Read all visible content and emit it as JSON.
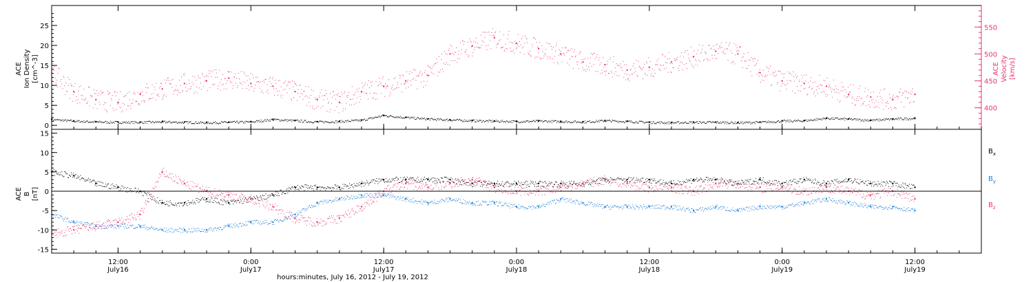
{
  "chart_data": [
    {
      "type": "scatter",
      "x_start": "July 16, 2012 06:00",
      "x_end": "July 19, 2012 12:00",
      "xlabel": "hours:minutes, July 16, 2012 - July 19, 2012",
      "ylabel_left": [
        "ACE",
        "Ion Density",
        "[cm^-3]"
      ],
      "ylabel_right": [
        "ACE",
        "Velocity",
        "[km/s]"
      ],
      "ylim_left": [
        -1,
        30
      ],
      "ylim_right": [
        360,
        590
      ],
      "yticks_left": [
        0,
        5,
        10,
        15,
        20,
        25
      ],
      "yticks_right": [
        400,
        450,
        500,
        550
      ],
      "grid": false,
      "colors": {
        "density": "#000000",
        "velocity": "#e8356a"
      },
      "series": [
        {
          "axis": "left",
          "color": "#000000",
          "x_hours": [
            0,
            2,
            4,
            6,
            8,
            10,
            12,
            14,
            16,
            18,
            20,
            22,
            24,
            26,
            28,
            30,
            32,
            34,
            36,
            38,
            40,
            42,
            44,
            46,
            48,
            50,
            52,
            54,
            56,
            58,
            60,
            62,
            64,
            66,
            68,
            70,
            72,
            74,
            76,
            78
          ],
          "values": [
            1.5,
            1.1,
            0.9,
            0.8,
            0.8,
            0.9,
            0.8,
            0.7,
            0.8,
            0.9,
            1.5,
            1.2,
            0.9,
            1.0,
            1.3,
            2.5,
            2.0,
            1.6,
            1.4,
            1.2,
            1.1,
            1.0,
            1.1,
            1.0,
            0.9,
            1.2,
            1.0,
            0.8,
            0.7,
            0.8,
            0.8,
            0.7,
            0.8,
            1.1,
            1.2,
            1.8,
            1.6,
            1.3,
            1.6,
            1.8
          ]
        },
        {
          "axis": "right",
          "color": "#e8356a",
          "x_hours": [
            0,
            2,
            4,
            6,
            8,
            10,
            12,
            14,
            16,
            18,
            20,
            22,
            24,
            26,
            28,
            30,
            32,
            34,
            36,
            38,
            40,
            42,
            44,
            46,
            48,
            50,
            52,
            54,
            56,
            58,
            60,
            62,
            64,
            66,
            68,
            70,
            72,
            74,
            76,
            78
          ],
          "values": [
            465,
            430,
            415,
            410,
            425,
            435,
            445,
            450,
            455,
            445,
            440,
            430,
            415,
            410,
            430,
            440,
            450,
            460,
            500,
            515,
            530,
            520,
            510,
            500,
            485,
            480,
            470,
            475,
            485,
            495,
            505,
            500,
            465,
            450,
            445,
            440,
            425,
            420,
            415,
            425
          ]
        }
      ]
    },
    {
      "type": "scatter",
      "x_start": "July 16, 2012 06:00",
      "x_end": "July 19, 2012 12:00",
      "xlabel": "hours:minutes, July 16, 2012 - July 19, 2012",
      "ylabel": [
        "ACE",
        "B",
        "[nT]"
      ],
      "ylim": [
        -16,
        16
      ],
      "yticks": [
        -15,
        -10,
        -5,
        0,
        5,
        10,
        15
      ],
      "zero_line": true,
      "legend": [
        "B_x",
        "B_y",
        "B_z"
      ],
      "legend_position": "right",
      "colors": {
        "Bx": "#000000",
        "By": "#1e7fd6",
        "Bz": "#e8356a"
      },
      "series": [
        {
          "name": "Bx",
          "color": "#000000",
          "x_hours": [
            0,
            2,
            4,
            6,
            8,
            10,
            12,
            14,
            16,
            18,
            20,
            22,
            24,
            26,
            28,
            30,
            32,
            34,
            36,
            38,
            40,
            42,
            44,
            46,
            48,
            50,
            52,
            54,
            56,
            58,
            60,
            62,
            64,
            66,
            68,
            70,
            72,
            74,
            76,
            78
          ],
          "values": [
            5,
            4,
            2,
            1,
            0,
            -3,
            -3,
            -2,
            -3,
            -2,
            -1,
            1,
            1,
            1,
            2,
            3,
            3,
            3,
            3,
            2,
            2,
            2,
            2,
            2,
            2,
            3,
            3,
            3,
            2,
            3,
            3,
            2,
            3,
            2,
            3,
            2,
            3,
            2,
            2,
            1
          ]
        },
        {
          "name": "By",
          "color": "#1e7fd6",
          "x_hours": [
            0,
            2,
            4,
            6,
            8,
            10,
            12,
            14,
            16,
            18,
            20,
            22,
            24,
            26,
            28,
            30,
            32,
            34,
            36,
            38,
            40,
            42,
            44,
            46,
            48,
            50,
            52,
            54,
            56,
            58,
            60,
            62,
            64,
            66,
            68,
            70,
            72,
            74,
            76,
            78
          ],
          "values": [
            -6,
            -8,
            -9,
            -9,
            -9,
            -10,
            -10,
            -10,
            -9,
            -8,
            -8,
            -6,
            -3,
            -2,
            -1,
            -1,
            -2,
            -3,
            -2,
            -3,
            -3,
            -4,
            -4,
            -2,
            -3,
            -4,
            -4,
            -4,
            -4,
            -5,
            -4,
            -5,
            -4,
            -4,
            -3,
            -2,
            -3,
            -4,
            -4,
            -5
          ]
        },
        {
          "name": "Bz",
          "color": "#e8356a",
          "x_hours": [
            0,
            2,
            4,
            6,
            8,
            10,
            12,
            14,
            16,
            18,
            20,
            22,
            24,
            26,
            28,
            30,
            32,
            34,
            36,
            38,
            40,
            42,
            44,
            46,
            48,
            50,
            52,
            54,
            56,
            58,
            60,
            62,
            64,
            66,
            68,
            70,
            72,
            74,
            76,
            78
          ],
          "values": [
            -11,
            -10,
            -9,
            -8,
            -6,
            5,
            2,
            0,
            -1,
            -2,
            -4,
            -7,
            -8,
            -7,
            -4,
            0,
            2,
            1,
            2,
            3,
            1,
            0,
            0,
            1,
            2,
            3,
            2,
            1,
            1,
            0,
            2,
            2,
            1,
            1,
            0,
            1,
            0,
            -1,
            0,
            -2
          ]
        }
      ]
    }
  ],
  "x_axis": {
    "ticks": [
      {
        "hour": 6,
        "time": "12:00",
        "day": "July16"
      },
      {
        "hour": 18,
        "time": "0:00",
        "day": "July17"
      },
      {
        "hour": 30,
        "time": "12:00",
        "day": "July17"
      },
      {
        "hour": 42,
        "time": "0:00",
        "day": "July18"
      },
      {
        "hour": 54,
        "time": "12:00",
        "day": "July18"
      },
      {
        "hour": 66,
        "time": "0:00",
        "day": "July19"
      },
      {
        "hour": 78,
        "time": "12:00",
        "day": "July19"
      }
    ],
    "xlabel": "hours:minutes, July 16, 2012 - July 19, 2012"
  },
  "labels": {
    "top_left": {
      "line1": "ACE",
      "line2": "Ion Density",
      "line3": "[cm^-3]"
    },
    "top_right": {
      "line1": "ACE",
      "line2": "Velocity",
      "line3": "[km/s]"
    },
    "bottom_left": {
      "line1": "ACE",
      "line2": "B",
      "line3": "[nT]"
    },
    "legend": {
      "bx": "B",
      "bx_sub": "x",
      "by": "B",
      "by_sub": "y",
      "bz": "B",
      "bz_sub": "z"
    }
  }
}
